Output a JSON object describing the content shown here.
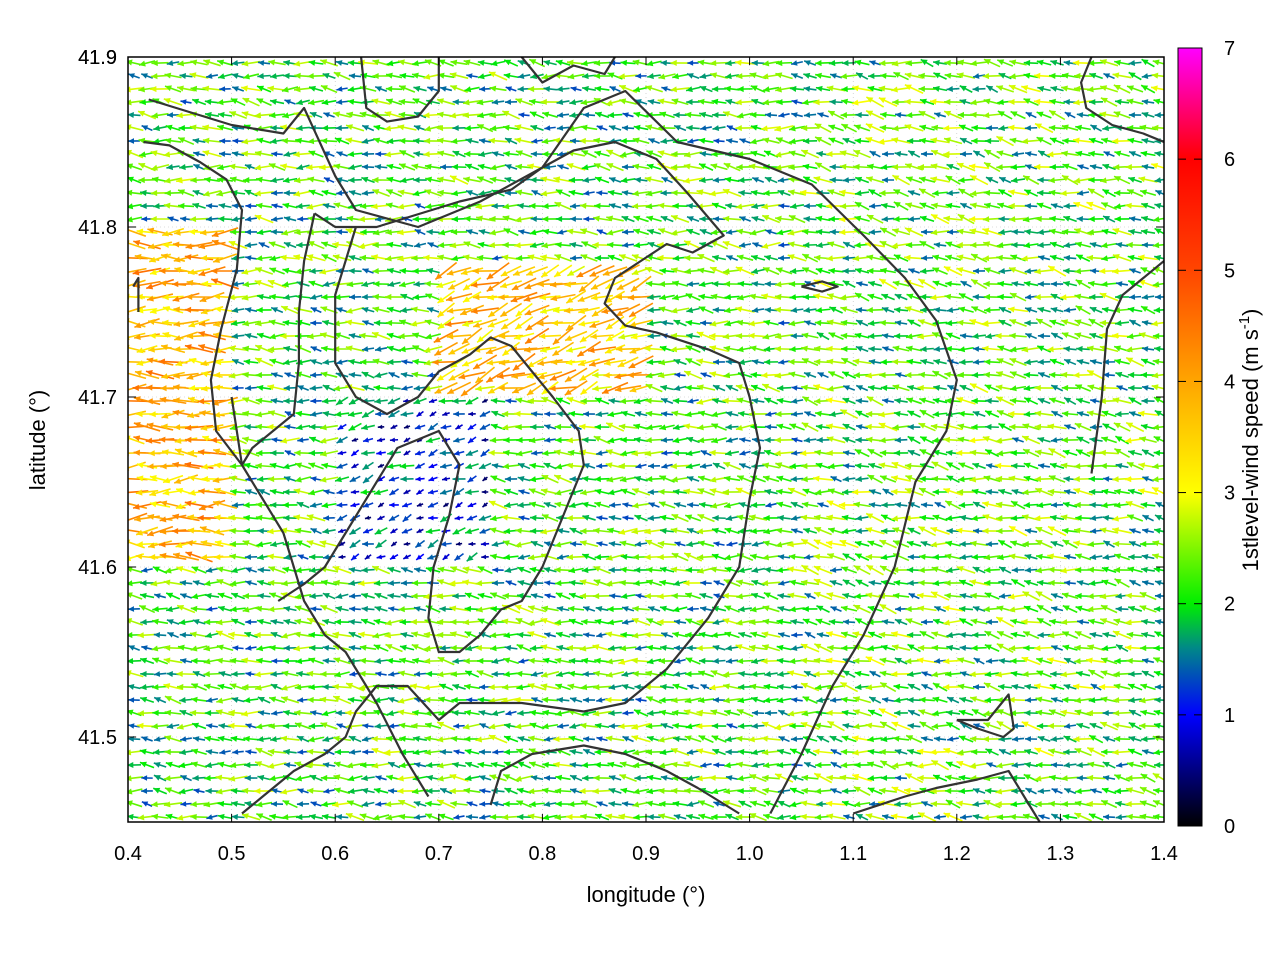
{
  "chart_data": {
    "type": "vector-field",
    "xlabel": "longitude (°)",
    "ylabel": "latitude (°)",
    "xlim": [
      0.4,
      1.4
    ],
    "ylim": [
      41.45,
      41.9
    ],
    "xticks": [
      "0.4",
      "0.5",
      "0.6",
      "0.7",
      "0.8",
      "0.9",
      "1.0",
      "1.1",
      "1.2",
      "1.3",
      "1.4"
    ],
    "yticks": [
      "41.5",
      "41.6",
      "41.7",
      "41.8",
      "41.9"
    ],
    "grid": true,
    "colorbar": {
      "label": "1stlevel-wind speed (m s",
      "label_sup": "-1",
      "label_end": ")",
      "range": [
        0,
        7
      ],
      "ticks": [
        "0",
        "1",
        "2",
        "3",
        "4",
        "5",
        "6",
        "7"
      ],
      "palette": [
        {
          "value": 0,
          "color": "#000000"
        },
        {
          "value": 1,
          "color": "#0000ff"
        },
        {
          "value": 1.6,
          "color": "#008888"
        },
        {
          "value": 2,
          "color": "#00ee00"
        },
        {
          "value": 3,
          "color": "#ffff00"
        },
        {
          "value": 4,
          "color": "#ffa500"
        },
        {
          "value": 5,
          "color": "#ff4500"
        },
        {
          "value": 6,
          "color": "#ff0000"
        },
        {
          "value": 7,
          "color": "#ff00ff"
        }
      ]
    },
    "contour_color": "#333333",
    "contours": [
      [
        [
          0.42,
          41.875
        ],
        [
          0.5,
          41.86
        ],
        [
          0.55,
          41.855
        ],
        [
          0.57,
          41.87
        ],
        [
          0.6,
          41.83
        ],
        [
          0.62,
          41.81
        ],
        [
          0.68,
          41.8
        ],
        [
          0.74,
          41.815
        ],
        [
          0.8,
          41.835
        ],
        [
          0.84,
          41.87
        ],
        [
          0.88,
          41.88
        ],
        [
          0.93,
          41.85
        ],
        [
          1.0,
          41.84
        ],
        [
          1.06,
          41.825
        ],
        [
          1.11,
          41.795
        ],
        [
          1.15,
          41.77
        ],
        [
          1.18,
          41.745
        ],
        [
          1.2,
          41.71
        ],
        [
          1.19,
          41.68
        ],
        [
          1.16,
          41.65
        ],
        [
          1.14,
          41.6
        ],
        [
          1.11,
          41.56
        ],
        [
          1.08,
          41.53
        ],
        [
          1.05,
          41.49
        ],
        [
          1.02,
          41.455
        ]
      ],
      [
        [
          0.415,
          41.85
        ],
        [
          0.44,
          41.848
        ],
        [
          0.47,
          41.838
        ],
        [
          0.495,
          41.828
        ],
        [
          0.51,
          41.81
        ],
        [
          0.505,
          41.775
        ],
        [
          0.49,
          41.74
        ],
        [
          0.48,
          41.71
        ],
        [
          0.485,
          41.68
        ],
        [
          0.51,
          41.66
        ],
        [
          0.53,
          41.64
        ],
        [
          0.55,
          41.62
        ],
        [
          0.56,
          41.6
        ],
        [
          0.57,
          41.58
        ],
        [
          0.59,
          41.56
        ],
        [
          0.61,
          41.55
        ],
        [
          0.64,
          41.52
        ],
        [
          0.665,
          41.49
        ],
        [
          0.69,
          41.465
        ]
      ],
      [
        [
          0.58,
          41.808
        ],
        [
          0.6,
          41.8
        ],
        [
          0.64,
          41.8
        ],
        [
          0.72,
          41.815
        ],
        [
          0.77,
          41.822
        ],
        [
          0.8,
          41.835
        ],
        [
          0.83,
          41.845
        ],
        [
          0.87,
          41.85
        ],
        [
          0.91,
          41.84
        ],
        [
          0.94,
          41.82
        ],
        [
          0.975,
          41.795
        ],
        [
          0.945,
          41.785
        ],
        [
          0.92,
          41.79
        ],
        [
          0.895,
          41.78
        ],
        [
          0.87,
          41.77
        ],
        [
          0.86,
          41.755
        ],
        [
          0.88,
          41.742
        ],
        [
          0.91,
          41.738
        ],
        [
          0.96,
          41.728
        ],
        [
          0.99,
          41.72
        ],
        [
          1.0,
          41.7
        ],
        [
          1.01,
          41.67
        ],
        [
          1.0,
          41.64
        ],
        [
          0.99,
          41.6
        ],
        [
          0.96,
          41.57
        ],
        [
          0.92,
          41.54
        ],
        [
          0.88,
          41.52
        ],
        [
          0.84,
          41.515
        ],
        [
          0.78,
          41.52
        ],
        [
          0.72,
          41.52
        ],
        [
          0.7,
          41.51
        ],
        [
          0.67,
          41.53
        ],
        [
          0.64,
          41.53
        ],
        [
          0.62,
          41.515
        ],
        [
          0.61,
          41.5
        ],
        [
          0.59,
          41.49
        ],
        [
          0.56,
          41.48
        ],
        [
          0.53,
          41.465
        ],
        [
          0.51,
          41.455
        ]
      ],
      [
        [
          0.58,
          41.808
        ],
        [
          0.57,
          41.78
        ],
        [
          0.565,
          41.75
        ],
        [
          0.565,
          41.72
        ],
        [
          0.56,
          41.69
        ],
        [
          0.54,
          41.68
        ],
        [
          0.52,
          41.67
        ],
        [
          0.51,
          41.66
        ],
        [
          0.5,
          41.7
        ]
      ],
      [
        [
          0.62,
          41.8
        ],
        [
          0.6,
          41.76
        ],
        [
          0.6,
          41.72
        ],
        [
          0.62,
          41.7
        ],
        [
          0.65,
          41.69
        ],
        [
          0.68,
          41.7
        ],
        [
          0.7,
          41.715
        ],
        [
          0.73,
          41.725
        ],
        [
          0.75,
          41.735
        ],
        [
          0.77,
          41.73
        ],
        [
          0.79,
          41.715
        ],
        [
          0.81,
          41.7
        ],
        [
          0.835,
          41.68
        ],
        [
          0.84,
          41.66
        ],
        [
          0.82,
          41.63
        ],
        [
          0.8,
          41.6
        ],
        [
          0.78,
          41.58
        ],
        [
          0.76,
          41.575
        ],
        [
          0.74,
          41.56
        ],
        [
          0.72,
          41.55
        ],
        [
          0.7,
          41.55
        ],
        [
          0.69,
          41.57
        ],
        [
          0.695,
          41.6
        ],
        [
          0.71,
          41.63
        ],
        [
          0.72,
          41.66
        ],
        [
          0.7,
          41.68
        ],
        [
          0.66,
          41.67
        ],
        [
          0.64,
          41.65
        ],
        [
          0.61,
          41.62
        ],
        [
          0.59,
          41.6
        ],
        [
          0.57,
          41.59
        ],
        [
          0.545,
          41.58
        ]
      ],
      [
        [
          0.625,
          41.9
        ],
        [
          0.63,
          41.87
        ],
        [
          0.65,
          41.862
        ],
        [
          0.68,
          41.865
        ],
        [
          0.7,
          41.88
        ],
        [
          0.7,
          41.9
        ]
      ],
      [
        [
          0.78,
          41.9
        ],
        [
          0.8,
          41.885
        ],
        [
          0.83,
          41.895
        ],
        [
          0.86,
          41.89
        ],
        [
          0.87,
          41.9
        ]
      ],
      [
        [
          1.33,
          41.9
        ],
        [
          1.32,
          41.885
        ],
        [
          1.325,
          41.87
        ],
        [
          1.35,
          41.86
        ],
        [
          1.38,
          41.855
        ],
        [
          1.4,
          41.85
        ]
      ],
      [
        [
          1.33,
          41.655
        ],
        [
          1.34,
          41.7
        ],
        [
          1.345,
          41.74
        ],
        [
          1.36,
          41.76
        ],
        [
          1.38,
          41.77
        ],
        [
          1.4,
          41.78
        ]
      ],
      [
        [
          1.05,
          41.765
        ],
        [
          1.07,
          41.768
        ],
        [
          1.085,
          41.765
        ],
        [
          1.07,
          41.762
        ],
        [
          1.05,
          41.765
        ]
      ],
      [
        [
          1.2,
          41.51
        ],
        [
          1.23,
          41.51
        ],
        [
          1.25,
          41.525
        ],
        [
          1.255,
          41.505
        ],
        [
          1.245,
          41.5
        ],
        [
          1.22,
          41.505
        ],
        [
          1.2,
          41.51
        ]
      ],
      [
        [
          1.1,
          41.455
        ],
        [
          1.15,
          41.465
        ],
        [
          1.18,
          41.47
        ],
        [
          1.22,
          41.475
        ],
        [
          1.25,
          41.48
        ],
        [
          1.27,
          41.46
        ],
        [
          1.28,
          41.45
        ]
      ],
      [
        [
          0.75,
          41.46
        ],
        [
          0.76,
          41.48
        ],
        [
          0.79,
          41.49
        ],
        [
          0.84,
          41.495
        ],
        [
          0.88,
          41.49
        ],
        [
          0.92,
          41.48
        ],
        [
          0.95,
          41.47
        ],
        [
          0.99,
          41.455
        ]
      ],
      [
        [
          0.405,
          41.765
        ],
        [
          0.41,
          41.77
        ],
        [
          0.41,
          41.75
        ]
      ]
    ],
    "field_regions": [
      {
        "lon": [
          0.4,
          0.5
        ],
        "lat": [
          41.6,
          41.8
        ],
        "speed": 3.8,
        "dir_deg": 180
      },
      {
        "lon": [
          0.7,
          0.9
        ],
        "lat": [
          41.7,
          41.78
        ],
        "speed": 3.6,
        "dir_deg": 200
      },
      {
        "lon": [
          0.6,
          0.75
        ],
        "lat": [
          41.6,
          41.7
        ],
        "speed": 1.2,
        "dir_deg": 200
      },
      {
        "lon": [
          1.05,
          1.4
        ],
        "lat": [
          41.45,
          41.9
        ],
        "speed": 2.2,
        "dir_deg": 170
      },
      {
        "lon": [
          0.4,
          1.4
        ],
        "lat": [
          41.45,
          41.9
        ],
        "speed": 2.1,
        "dir_deg": 175
      }
    ]
  }
}
